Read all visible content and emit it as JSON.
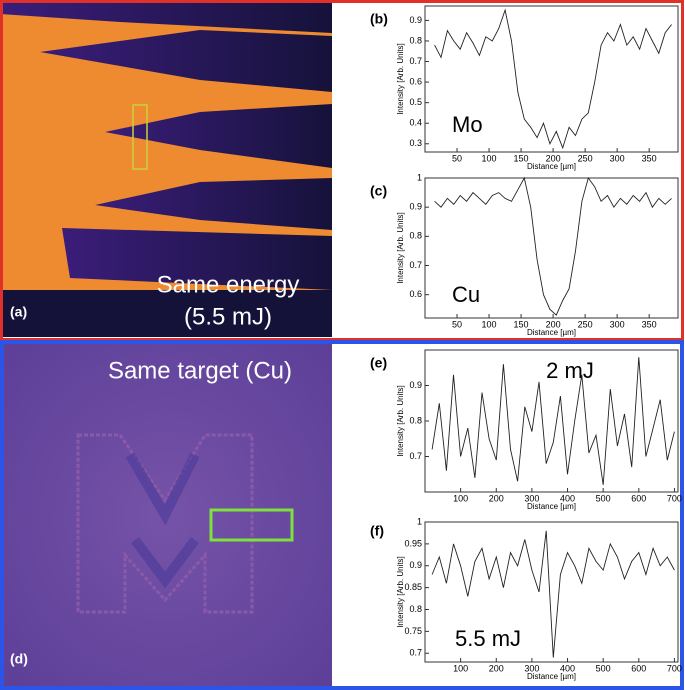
{
  "images": [
    {
      "panel_label": "(a)",
      "caption": [
        "Same energy",
        "(5.5 mJ)"
      ]
    },
    {
      "panel_label": "(d)",
      "caption": [
        "Same target (Cu)"
      ]
    }
  ],
  "chart_data": [
    {
      "type": "line",
      "panel_label": "(b)",
      "annotation": "Mo",
      "x_label": "Distance [µm]",
      "y_label": "Intensity [Arb. Units]",
      "color": "#222222",
      "x": [
        15,
        25,
        35,
        45,
        55,
        65,
        75,
        85,
        95,
        105,
        115,
        125,
        135,
        145,
        155,
        165,
        175,
        185,
        195,
        205,
        215,
        225,
        235,
        245,
        255,
        265,
        275,
        285,
        295,
        305,
        315,
        325,
        335,
        345,
        355,
        365,
        375,
        385
      ],
      "values": [
        0.78,
        0.72,
        0.85,
        0.8,
        0.76,
        0.84,
        0.79,
        0.73,
        0.82,
        0.8,
        0.86,
        0.95,
        0.8,
        0.55,
        0.42,
        0.38,
        0.33,
        0.4,
        0.3,
        0.36,
        0.28,
        0.38,
        0.34,
        0.42,
        0.45,
        0.6,
        0.78,
        0.84,
        0.8,
        0.88,
        0.78,
        0.82,
        0.76,
        0.86,
        0.8,
        0.74,
        0.84,
        0.88
      ],
      "xlim": [
        0,
        395
      ],
      "ylim": [
        0.26,
        0.97
      ],
      "xticks": [
        50,
        100,
        150,
        200,
        250,
        300,
        350
      ],
      "yticks": [
        0.3,
        0.4,
        0.5,
        0.6,
        0.7,
        0.8,
        0.9
      ]
    },
    {
      "type": "line",
      "panel_label": "(c)",
      "annotation": "Cu",
      "x_label": "Distance [µm]",
      "y_label": "Intensity [Arb. Units]",
      "color": "#222222",
      "x": [
        15,
        25,
        35,
        45,
        55,
        65,
        75,
        85,
        95,
        105,
        115,
        125,
        135,
        145,
        155,
        165,
        175,
        185,
        195,
        205,
        215,
        225,
        235,
        245,
        255,
        265,
        275,
        285,
        295,
        305,
        315,
        325,
        335,
        345,
        355,
        365,
        375,
        385
      ],
      "values": [
        0.92,
        0.9,
        0.93,
        0.91,
        0.94,
        0.92,
        0.95,
        0.93,
        0.91,
        0.94,
        0.95,
        0.93,
        0.92,
        0.96,
        1.0,
        0.9,
        0.72,
        0.6,
        0.55,
        0.53,
        0.58,
        0.62,
        0.75,
        0.92,
        1.0,
        0.97,
        0.92,
        0.94,
        0.9,
        0.93,
        0.91,
        0.94,
        0.92,
        0.95,
        0.9,
        0.93,
        0.91,
        0.93
      ],
      "xlim": [
        0,
        395
      ],
      "ylim": [
        0.52,
        1.0
      ],
      "xticks": [
        50,
        100,
        150,
        200,
        250,
        300,
        350
      ],
      "yticks": [
        0.6,
        0.7,
        0.8,
        0.9,
        1
      ]
    },
    {
      "type": "line",
      "panel_label": "(e)",
      "annotation": "2 mJ",
      "x_label": "Distance [µm]",
      "y_label": "Intensity [Arb. Units]",
      "color": "#222222",
      "x": [
        20,
        40,
        60,
        80,
        100,
        120,
        140,
        160,
        180,
        200,
        220,
        240,
        260,
        280,
        300,
        320,
        340,
        360,
        380,
        400,
        420,
        440,
        460,
        480,
        500,
        520,
        540,
        560,
        580,
        600,
        620,
        640,
        660,
        680,
        700
      ],
      "values": [
        0.72,
        0.85,
        0.66,
        0.93,
        0.7,
        0.78,
        0.64,
        0.88,
        0.75,
        0.69,
        0.96,
        0.72,
        0.63,
        0.84,
        0.77,
        0.91,
        0.68,
        0.74,
        0.87,
        0.65,
        0.8,
        0.93,
        0.71,
        0.76,
        0.62,
        0.89,
        0.73,
        0.82,
        0.67,
        0.98,
        0.7,
        0.78,
        0.86,
        0.69,
        0.77
      ],
      "xlim": [
        0,
        710
      ],
      "ylim": [
        0.6,
        1.0
      ],
      "xticks": [
        100,
        200,
        300,
        400,
        500,
        600,
        700
      ],
      "yticks": [
        0.7,
        0.8,
        0.9
      ]
    },
    {
      "type": "line",
      "panel_label": "(f)",
      "annotation": "5.5 mJ",
      "x_label": "Distance [µm]",
      "y_label": "Intensity [Arb. Units]",
      "color": "#222222",
      "x": [
        20,
        40,
        60,
        80,
        100,
        120,
        140,
        160,
        180,
        200,
        220,
        240,
        260,
        280,
        300,
        320,
        340,
        360,
        380,
        400,
        420,
        440,
        460,
        480,
        500,
        520,
        540,
        560,
        580,
        600,
        620,
        640,
        660,
        680,
        700
      ],
      "values": [
        0.88,
        0.92,
        0.86,
        0.95,
        0.9,
        0.83,
        0.91,
        0.94,
        0.87,
        0.92,
        0.85,
        0.93,
        0.9,
        0.96,
        0.89,
        0.84,
        0.98,
        0.69,
        0.88,
        0.93,
        0.9,
        0.86,
        0.94,
        0.91,
        0.89,
        0.95,
        0.92,
        0.87,
        0.91,
        0.93,
        0.88,
        0.94,
        0.9,
        0.92,
        0.89
      ],
      "xlim": [
        0,
        710
      ],
      "ylim": [
        0.68,
        1.0
      ],
      "xticks": [
        100,
        200,
        300,
        400,
        500,
        600,
        700
      ],
      "yticks": [
        0.7,
        0.75,
        0.8,
        0.85,
        0.9,
        0.95,
        1
      ]
    }
  ]
}
